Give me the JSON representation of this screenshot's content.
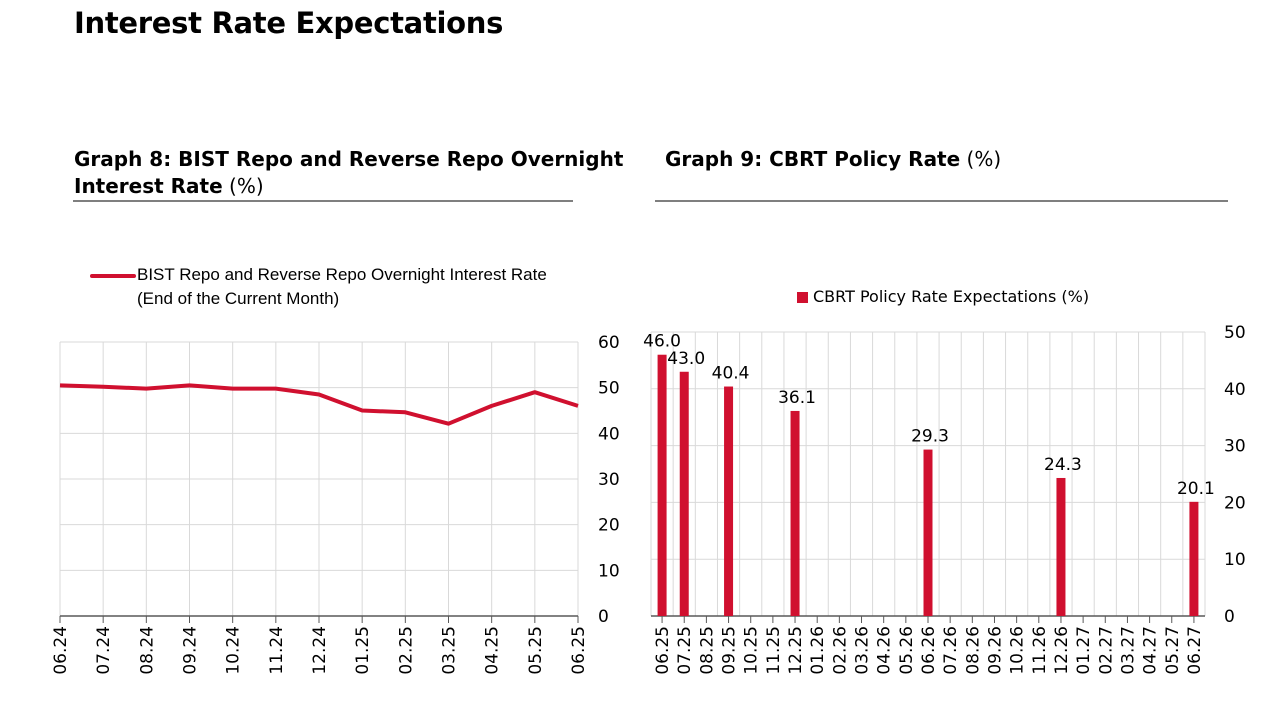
{
  "page": {
    "title": "Interest Rate Expectations"
  },
  "graph8": {
    "title_bold_1": "Graph 8: BIST Repo and Reverse Repo Overnight",
    "title_bold_2": "Interest Rate",
    "title_unit": "(%)"
  },
  "graph9": {
    "title_bold": "Graph 9: CBRT Policy Rate",
    "title_unit": "(%)"
  },
  "chart_data": [
    {
      "type": "line",
      "title": "Graph 8: BIST Repo and Reverse Repo Overnight Interest Rate (%)",
      "legend": [
        "BIST Repo and Reverse Repo Overnight Interest Rate",
        "(End of the Current Month)"
      ],
      "series_color": "#d0102f",
      "categories": [
        "06.24",
        "07.24",
        "08.24",
        "09.24",
        "10.24",
        "11.24",
        "12.24",
        "01.25",
        "02.25",
        "03.25",
        "04.25",
        "05.25",
        "06.25"
      ],
      "values": [
        50.5,
        50.2,
        49.8,
        50.5,
        49.8,
        49.8,
        48.5,
        45.0,
        44.6,
        42.1,
        46.0,
        49.0,
        46.0
      ],
      "yticks": [
        0,
        10,
        20,
        30,
        40,
        50,
        60
      ],
      "ylim": [
        0,
        60
      ],
      "xlabel": "",
      "ylabel": "",
      "grid": true
    },
    {
      "type": "bar",
      "title": "Graph 9: CBRT Policy Rate (%)",
      "legend": [
        "CBRT Policy Rate Expectations (%)"
      ],
      "series_color": "#d0102f",
      "categories": [
        "06.25",
        "07.25",
        "08.25",
        "09.25",
        "10.25",
        "11.25",
        "12.25",
        "01.26",
        "02.26",
        "03.26",
        "04.26",
        "05.26",
        "06.26",
        "07.26",
        "08.26",
        "09.26",
        "10.26",
        "11.26",
        "12.26",
        "01.27",
        "02.27",
        "03.27",
        "04.27",
        "05.27",
        "06.27"
      ],
      "values": [
        46.0,
        43.0,
        null,
        40.4,
        null,
        null,
        36.1,
        null,
        null,
        null,
        null,
        null,
        29.3,
        null,
        null,
        null,
        null,
        null,
        24.3,
        null,
        null,
        null,
        null,
        null,
        20.1
      ],
      "labels": [
        "46.0",
        "43.0",
        "",
        "40.4",
        "",
        "",
        "36.1",
        "",
        "",
        "",
        "",
        "",
        "29.3",
        "",
        "",
        "",
        "",
        "",
        "24.3",
        "",
        "",
        "",
        "",
        "",
        "20.1"
      ],
      "yticks": [
        0,
        10,
        20,
        30,
        40,
        50
      ],
      "ylim": [
        0,
        50
      ],
      "xlabel": "",
      "ylabel": "",
      "grid": true
    }
  ]
}
